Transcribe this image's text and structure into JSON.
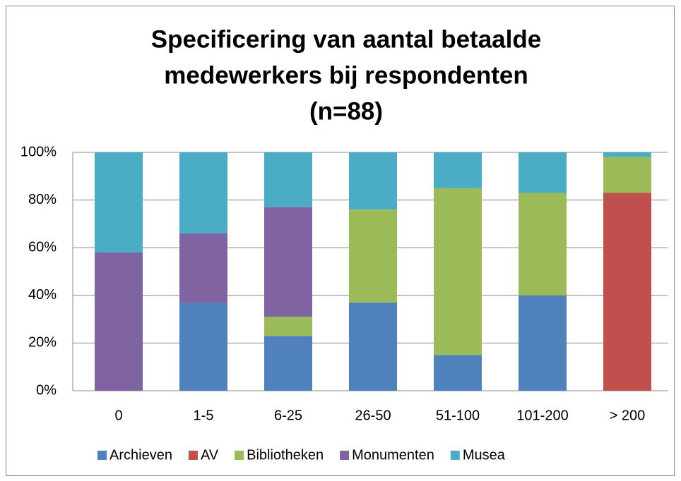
{
  "chart_data": {
    "type": "stacked_bar",
    "title": [
      "Specificering van aantal betaalde",
      "medewerkers bij respondenten",
      "(n=88)"
    ],
    "categories": [
      "0",
      "1-5",
      "6-25",
      "26-50",
      "51-100",
      "101-200",
      "> 200"
    ],
    "series": [
      {
        "name": "Archieven",
        "color": "#4f81bd",
        "values": [
          0,
          37,
          23,
          37,
          15,
          40,
          0
        ]
      },
      {
        "name": "AV",
        "color": "#c0504d",
        "values": [
          0,
          0,
          0,
          0,
          0,
          0,
          83
        ]
      },
      {
        "name": "Bibliotheken",
        "color": "#9bbb59",
        "values": [
          0,
          0,
          8,
          39,
          70,
          43,
          15
        ]
      },
      {
        "name": "Monumenten",
        "color": "#8064a2",
        "values": [
          58,
          29,
          46,
          0,
          0,
          0,
          0
        ]
      },
      {
        "name": "Musea",
        "color": "#4bacc6",
        "values": [
          42,
          34,
          23,
          24,
          15,
          17,
          2
        ]
      }
    ],
    "ylim": [
      0,
      100
    ],
    "yticks": [
      {
        "value": 0,
        "label": "0%"
      },
      {
        "value": 20,
        "label": "20%"
      },
      {
        "value": 40,
        "label": "40%"
      },
      {
        "value": 60,
        "label": "60%"
      },
      {
        "value": 80,
        "label": "80%"
      },
      {
        "value": 100,
        "label": "100%"
      }
    ],
    "grid": true,
    "legend": "bottom"
  }
}
